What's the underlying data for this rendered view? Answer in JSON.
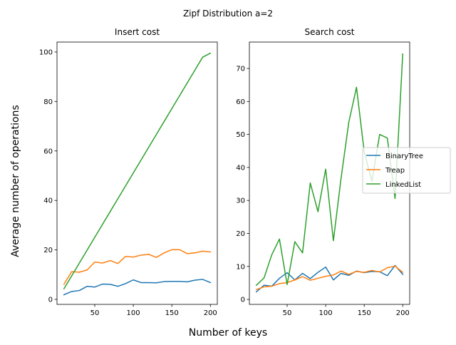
{
  "figure": {
    "suptitle": "Zipf Distribution a=2",
    "supxlabel": "Number of keys",
    "supylabel": "Average number of operations"
  },
  "chart_data": [
    {
      "type": "line",
      "title": "Insert cost",
      "xlabel": "",
      "ylabel": "",
      "xlim": [
        1,
        209
      ],
      "ylim": [
        -2,
        104
      ],
      "xticks": [
        50,
        100,
        150,
        200
      ],
      "yticks": [
        0,
        20,
        40,
        60,
        80,
        100
      ],
      "x": [
        10,
        20,
        30,
        40,
        50,
        60,
        70,
        80,
        90,
        100,
        110,
        120,
        130,
        140,
        150,
        160,
        170,
        180,
        190,
        200
      ],
      "series": [
        {
          "name": "BinaryTree",
          "color": "#1f77b4",
          "values": [
            1.9,
            3.2,
            3.6,
            5.3,
            5.0,
            6.2,
            6.1,
            5.3,
            6.4,
            7.9,
            6.8,
            6.8,
            6.7,
            7.2,
            7.3,
            7.3,
            7.1,
            7.8,
            8.1,
            6.8
          ]
        },
        {
          "name": "Treap",
          "color": "#ff7f0e",
          "values": [
            6.1,
            11.2,
            11.0,
            11.9,
            15.1,
            14.7,
            15.7,
            14.5,
            17.4,
            17.1,
            17.9,
            18.2,
            17.0,
            18.8,
            20.1,
            20.1,
            18.5,
            18.8,
            19.5,
            19.2
          ]
        },
        {
          "name": "LinkedList",
          "color": "#2ca02c",
          "values": [
            4.3,
            9.5,
            14.7,
            19.9,
            25.1,
            30.3,
            35.5,
            40.7,
            45.9,
            51.1,
            56.3,
            61.5,
            66.7,
            71.9,
            77.1,
            82.3,
            87.5,
            92.7,
            97.9,
            99.5
          ]
        }
      ]
    },
    {
      "type": "line",
      "title": "Search cost",
      "xlabel": "",
      "ylabel": "",
      "xlim": [
        1,
        209
      ],
      "ylim": [
        -1.5,
        78
      ],
      "xticks": [
        50,
        100,
        150,
        200
      ],
      "yticks": [
        0,
        10,
        20,
        30,
        40,
        50,
        60,
        70
      ],
      "x": [
        10,
        20,
        30,
        40,
        50,
        60,
        70,
        80,
        90,
        100,
        110,
        120,
        130,
        140,
        150,
        160,
        170,
        180,
        190,
        200
      ],
      "series": [
        {
          "name": "BinaryTree",
          "color": "#1f77b4",
          "values": [
            2.3,
            4.3,
            4.0,
            6.4,
            8.1,
            5.9,
            7.9,
            6.3,
            8.2,
            9.8,
            5.9,
            7.9,
            7.3,
            8.6,
            8.1,
            8.5,
            8.4,
            7.2,
            10.3,
            7.6
          ]
        },
        {
          "name": "Treap",
          "color": "#ff7f0e",
          "values": [
            3.0,
            3.8,
            4.0,
            4.8,
            5.1,
            5.9,
            6.9,
            5.8,
            6.4,
            7.0,
            7.4,
            8.6,
            7.6,
            8.5,
            8.2,
            8.8,
            8.3,
            9.6,
            10.1,
            8.2
          ]
        },
        {
          "name": "LinkedList",
          "color": "#2ca02c",
          "values": [
            4.3,
            6.5,
            13.5,
            18.3,
            4.5,
            17.5,
            14.1,
            35.3,
            26.6,
            39.5,
            17.8,
            36.8,
            53.7,
            64.3,
            44.7,
            35.8,
            50.0,
            48.9,
            30.6,
            74.4
          ]
        }
      ]
    }
  ],
  "legend": {
    "placement": "right of second subplot",
    "entries": [
      {
        "label": "BinaryTree",
        "color": "#1f77b4"
      },
      {
        "label": "Treap",
        "color": "#ff7f0e"
      },
      {
        "label": "LinkedList",
        "color": "#2ca02c"
      }
    ]
  }
}
